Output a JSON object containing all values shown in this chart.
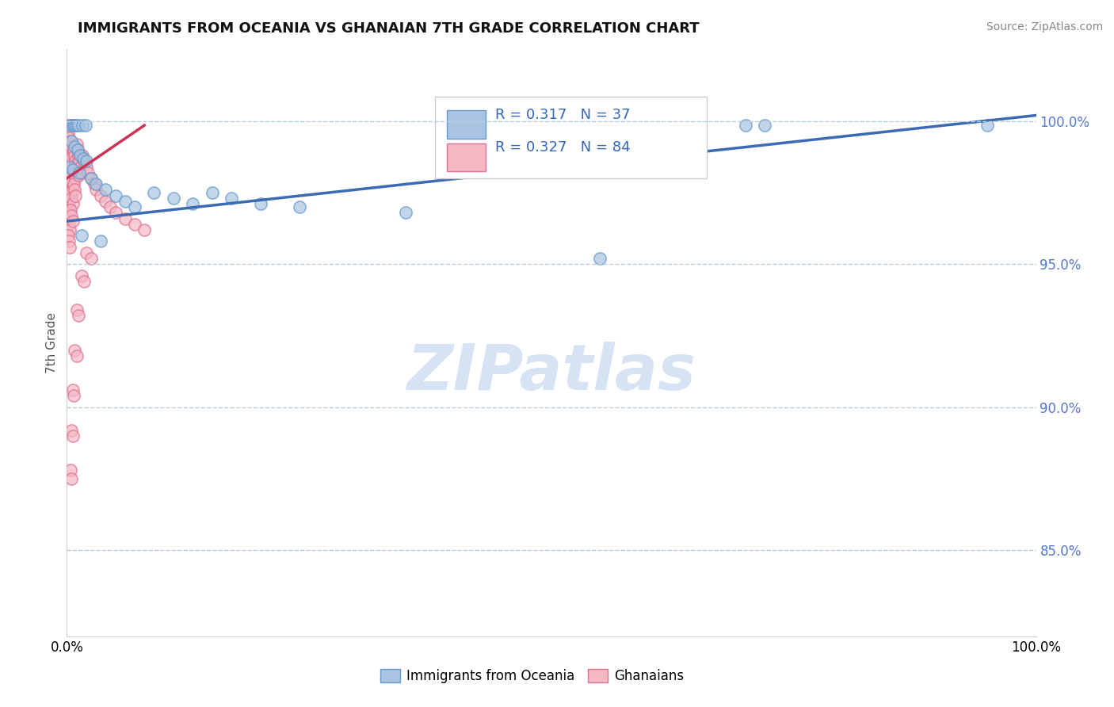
{
  "title": "IMMIGRANTS FROM OCEANIA VS GHANAIAN 7TH GRADE CORRELATION CHART",
  "source": "Source: ZipAtlas.com",
  "ylabel": "7th Grade",
  "xlim": [
    0.0,
    1.0
  ],
  "ylim": [
    0.82,
    1.025
  ],
  "yticks": [
    0.85,
    0.9,
    0.95,
    1.0
  ],
  "ytick_labels": [
    "85.0%",
    "90.0%",
    "95.0%",
    "100.0%"
  ],
  "blue_color": "#A8C4E0",
  "blue_edge_color": "#6699CC",
  "pink_color": "#F4B8C4",
  "pink_edge_color": "#E07090",
  "blue_line_color": "#3B6BB5",
  "pink_line_color": "#CC3355",
  "watermark_color": "#D5E3F5",
  "blue_dots": [
    [
      0.004,
      0.9985
    ],
    [
      0.006,
      0.9985
    ],
    [
      0.007,
      0.9985
    ],
    [
      0.009,
      0.9985
    ],
    [
      0.01,
      0.9985
    ],
    [
      0.012,
      0.9985
    ],
    [
      0.016,
      0.9985
    ],
    [
      0.019,
      0.9985
    ],
    [
      0.005,
      0.993
    ],
    [
      0.008,
      0.991
    ],
    [
      0.011,
      0.99
    ],
    [
      0.014,
      0.988
    ],
    [
      0.017,
      0.987
    ],
    [
      0.02,
      0.986
    ],
    [
      0.003,
      0.984
    ],
    [
      0.006,
      0.983
    ],
    [
      0.013,
      0.982
    ],
    [
      0.025,
      0.98
    ],
    [
      0.03,
      0.978
    ],
    [
      0.04,
      0.976
    ],
    [
      0.05,
      0.974
    ],
    [
      0.06,
      0.972
    ],
    [
      0.07,
      0.97
    ],
    [
      0.09,
      0.975
    ],
    [
      0.11,
      0.973
    ],
    [
      0.13,
      0.971
    ],
    [
      0.15,
      0.975
    ],
    [
      0.17,
      0.973
    ],
    [
      0.2,
      0.971
    ],
    [
      0.24,
      0.97
    ],
    [
      0.35,
      0.968
    ],
    [
      0.55,
      0.952
    ],
    [
      0.7,
      0.9985
    ],
    [
      0.72,
      0.9985
    ],
    [
      0.95,
      0.9985
    ],
    [
      0.015,
      0.96
    ],
    [
      0.035,
      0.958
    ]
  ],
  "pink_dots": [
    [
      0.002,
      0.9985
    ],
    [
      0.003,
      0.9985
    ],
    [
      0.004,
      0.9985
    ],
    [
      0.001,
      0.996
    ],
    [
      0.002,
      0.994
    ],
    [
      0.003,
      0.992
    ],
    [
      0.001,
      0.99
    ],
    [
      0.002,
      0.988
    ],
    [
      0.003,
      0.986
    ],
    [
      0.001,
      0.984
    ],
    [
      0.002,
      0.982
    ],
    [
      0.003,
      0.98
    ],
    [
      0.001,
      0.978
    ],
    [
      0.002,
      0.976
    ],
    [
      0.003,
      0.974
    ],
    [
      0.001,
      0.972
    ],
    [
      0.002,
      0.97
    ],
    [
      0.003,
      0.968
    ],
    [
      0.001,
      0.966
    ],
    [
      0.002,
      0.964
    ],
    [
      0.003,
      0.962
    ],
    [
      0.001,
      0.96
    ],
    [
      0.002,
      0.958
    ],
    [
      0.003,
      0.956
    ],
    [
      0.004,
      0.993
    ],
    [
      0.005,
      0.991
    ],
    [
      0.006,
      0.989
    ],
    [
      0.004,
      0.987
    ],
    [
      0.005,
      0.985
    ],
    [
      0.006,
      0.983
    ],
    [
      0.004,
      0.981
    ],
    [
      0.005,
      0.979
    ],
    [
      0.006,
      0.977
    ],
    [
      0.004,
      0.975
    ],
    [
      0.005,
      0.973
    ],
    [
      0.006,
      0.971
    ],
    [
      0.004,
      0.969
    ],
    [
      0.005,
      0.967
    ],
    [
      0.006,
      0.965
    ],
    [
      0.007,
      0.99
    ],
    [
      0.008,
      0.988
    ],
    [
      0.009,
      0.986
    ],
    [
      0.007,
      0.984
    ],
    [
      0.008,
      0.982
    ],
    [
      0.009,
      0.98
    ],
    [
      0.007,
      0.978
    ],
    [
      0.008,
      0.976
    ],
    [
      0.009,
      0.974
    ],
    [
      0.01,
      0.992
    ],
    [
      0.011,
      0.99
    ],
    [
      0.012,
      0.988
    ],
    [
      0.01,
      0.985
    ],
    [
      0.011,
      0.983
    ],
    [
      0.012,
      0.981
    ],
    [
      0.013,
      0.986
    ],
    [
      0.014,
      0.984
    ],
    [
      0.015,
      0.982
    ],
    [
      0.016,
      0.988
    ],
    [
      0.018,
      0.986
    ],
    [
      0.02,
      0.984
    ],
    [
      0.022,
      0.982
    ],
    [
      0.025,
      0.98
    ],
    [
      0.028,
      0.978
    ],
    [
      0.03,
      0.976
    ],
    [
      0.035,
      0.974
    ],
    [
      0.04,
      0.972
    ],
    [
      0.045,
      0.97
    ],
    [
      0.05,
      0.968
    ],
    [
      0.06,
      0.966
    ],
    [
      0.07,
      0.964
    ],
    [
      0.08,
      0.962
    ],
    [
      0.02,
      0.954
    ],
    [
      0.025,
      0.952
    ],
    [
      0.015,
      0.946
    ],
    [
      0.018,
      0.944
    ],
    [
      0.01,
      0.934
    ],
    [
      0.012,
      0.932
    ],
    [
      0.008,
      0.92
    ],
    [
      0.01,
      0.918
    ],
    [
      0.006,
      0.906
    ],
    [
      0.007,
      0.904
    ],
    [
      0.005,
      0.892
    ],
    [
      0.006,
      0.89
    ],
    [
      0.004,
      0.878
    ],
    [
      0.005,
      0.875
    ]
  ],
  "blue_trendline": [
    [
      0.0,
      0.965
    ],
    [
      1.0,
      1.002
    ]
  ],
  "pink_trendline": [
    [
      0.0,
      0.98
    ],
    [
      0.08,
      0.9985
    ]
  ]
}
